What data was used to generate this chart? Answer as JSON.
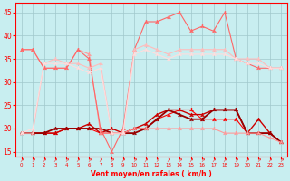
{
  "xlabel": "Vent moyen/en rafales ( km/h )",
  "xlim": [
    -0.5,
    23.5
  ],
  "ylim": [
    14,
    47
  ],
  "yticks": [
    15,
    20,
    25,
    30,
    35,
    40,
    45
  ],
  "xticks": [
    0,
    1,
    2,
    3,
    4,
    5,
    6,
    7,
    8,
    9,
    10,
    11,
    12,
    13,
    14,
    15,
    16,
    17,
    18,
    19,
    20,
    21,
    22,
    23
  ],
  "bg_color": "#c8eef0",
  "grid_color": "#a0c8cc",
  "series": [
    {
      "x": [
        0,
        1,
        2,
        3,
        4,
        5,
        6,
        7,
        8,
        9,
        10,
        11,
        12,
        13,
        14,
        15,
        16,
        17,
        18,
        19,
        20,
        21,
        22,
        23
      ],
      "y": [
        19,
        19,
        19,
        19,
        20,
        20,
        20,
        19,
        19,
        19,
        20,
        20,
        22,
        23,
        24,
        24,
        22,
        22,
        22,
        22,
        19,
        19,
        19,
        17
      ],
      "color": "#ff0000",
      "lw": 0.8,
      "marker": "2"
    },
    {
      "x": [
        0,
        1,
        2,
        3,
        4,
        5,
        6,
        7,
        8,
        9,
        10,
        11,
        12,
        13,
        14,
        15,
        16,
        17,
        18,
        19,
        20,
        21,
        22,
        23
      ],
      "y": [
        19,
        19,
        19,
        19,
        20,
        20,
        21,
        19,
        20,
        19,
        20,
        21,
        23,
        24,
        24,
        23,
        23,
        24,
        24,
        24,
        19,
        22,
        19,
        17
      ],
      "color": "#cc0000",
      "lw": 1.0,
      "marker": "2"
    },
    {
      "x": [
        0,
        1,
        2,
        3,
        4,
        5,
        6,
        7,
        8,
        9,
        10,
        11,
        12,
        13,
        14,
        15,
        16,
        17,
        18,
        19,
        20,
        21,
        22,
        23
      ],
      "y": [
        19,
        19,
        19,
        20,
        20,
        20,
        20,
        20,
        19,
        19,
        19,
        20,
        22,
        24,
        23,
        22,
        22,
        24,
        24,
        24,
        19,
        19,
        19,
        17
      ],
      "color": "#990000",
      "lw": 1.3,
      "marker": "2"
    },
    {
      "x": [
        0,
        1,
        2,
        3,
        4,
        5,
        6,
        7,
        8,
        9,
        10,
        11,
        12,
        13,
        14,
        15,
        16,
        17,
        18,
        19,
        20,
        21,
        22,
        23
      ],
      "y": [
        37,
        37,
        33,
        33,
        33,
        37,
        36,
        19,
        19,
        19,
        20,
        20,
        20,
        20,
        20,
        20,
        20,
        20,
        19,
        19,
        19,
        19,
        18,
        17
      ],
      "color": "#ff9999",
      "lw": 0.8,
      "marker": "2"
    },
    {
      "x": [
        0,
        1,
        2,
        3,
        4,
        5,
        6,
        7,
        8,
        9,
        10,
        11,
        12,
        13,
        14,
        15,
        16,
        17,
        18,
        19,
        20,
        21,
        22,
        23
      ],
      "y": [
        37,
        37,
        33,
        33,
        33,
        37,
        35,
        20,
        15,
        20,
        37,
        43,
        43,
        44,
        45,
        41,
        42,
        41,
        45,
        35,
        34,
        33,
        33,
        33
      ],
      "color": "#ff6666",
      "lw": 0.8,
      "marker": "2"
    },
    {
      "x": [
        0,
        1,
        2,
        3,
        4,
        5,
        6,
        7,
        8,
        9,
        10,
        11,
        12,
        13,
        14,
        15,
        16,
        17,
        18,
        19,
        20,
        21,
        22,
        23
      ],
      "y": [
        19,
        19,
        34,
        35,
        34,
        34,
        33,
        34,
        19,
        19,
        37,
        38,
        37,
        36,
        37,
        37,
        37,
        37,
        37,
        35,
        35,
        35,
        33,
        33
      ],
      "color": "#ffbbbb",
      "lw": 0.8,
      "marker": "2"
    },
    {
      "x": [
        0,
        1,
        2,
        3,
        4,
        5,
        6,
        7,
        8,
        9,
        10,
        11,
        12,
        13,
        14,
        15,
        16,
        17,
        18,
        19,
        20,
        21,
        22,
        23
      ],
      "y": [
        19,
        20,
        34,
        34,
        34,
        33,
        32,
        33,
        19,
        19,
        36,
        37,
        36,
        35,
        36,
        36,
        36,
        36,
        36,
        35,
        34,
        34,
        33,
        33
      ],
      "color": "#ffdddd",
      "lw": 0.8,
      "marker": "2"
    }
  ]
}
